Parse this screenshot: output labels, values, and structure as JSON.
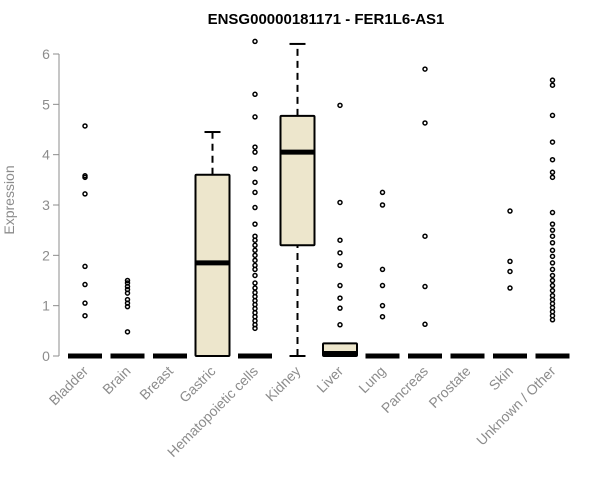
{
  "chart_data": {
    "type": "boxplot",
    "title": "ENSG00000181171 - FER1L6-AS1",
    "xlabel": "",
    "ylabel": "Expression",
    "ylim": [
      0,
      6.2
    ],
    "yticks": [
      0,
      1,
      2,
      3,
      4,
      5,
      6
    ],
    "grid": false,
    "box_fill": "#ede6cc",
    "stroke": "#000000",
    "axis_color": "#8c8c8c",
    "categories": [
      "Bladder",
      "Brain",
      "Breast",
      "Gastric",
      "Hematopoietic cells",
      "Kidney",
      "Liver",
      "Lung",
      "Pancreas",
      "Prostate",
      "Skin",
      "Unknown / Other"
    ],
    "boxes": [
      {
        "min": 0,
        "q1": 0,
        "median": 0,
        "q3": 0,
        "max": 0,
        "outliers": [
          0.8,
          1.05,
          1.42,
          1.78,
          3.22,
          3.55,
          3.58,
          4.57
        ]
      },
      {
        "min": 0,
        "q1": 0,
        "median": 0,
        "q3": 0,
        "max": 0,
        "outliers": [
          0.48,
          0.98,
          1.05,
          1.12,
          1.25,
          1.32,
          1.38,
          1.45,
          1.5
        ]
      },
      {
        "min": 0,
        "q1": 0,
        "median": 0,
        "q3": 0,
        "max": 0,
        "outliers": []
      },
      {
        "min": 0,
        "q1": 0,
        "median": 1.85,
        "q3": 3.6,
        "max": 4.45,
        "outliers": []
      },
      {
        "min": 0,
        "q1": 0,
        "median": 0,
        "q3": 0,
        "max": 0,
        "outliers": [
          0.55,
          0.62,
          0.7,
          0.78,
          0.86,
          0.94,
          1.02,
          1.1,
          1.18,
          1.26,
          1.35,
          1.45,
          1.6,
          1.72,
          1.8,
          1.9,
          2.0,
          2.1,
          2.2,
          2.3,
          2.38,
          2.62,
          2.95,
          3.25,
          3.45,
          3.72,
          4.05,
          4.15,
          4.75,
          5.2,
          6.25
        ]
      },
      {
        "min": 0,
        "q1": 2.2,
        "median": 4.05,
        "q3": 4.77,
        "max": 6.2,
        "outliers": []
      },
      {
        "min": 0,
        "q1": 0,
        "median": 0.05,
        "q3": 0.25,
        "max": 0.25,
        "outliers": [
          0.62,
          0.95,
          1.15,
          1.4,
          1.8,
          2.05,
          2.3,
          3.05,
          4.98
        ]
      },
      {
        "min": 0,
        "q1": 0,
        "median": 0,
        "q3": 0,
        "max": 0,
        "outliers": [
          0.78,
          1.0,
          1.4,
          1.72,
          3.0,
          3.25
        ]
      },
      {
        "min": 0,
        "q1": 0,
        "median": 0,
        "q3": 0,
        "max": 0,
        "outliers": [
          0.63,
          1.38,
          2.38,
          4.63,
          5.7
        ]
      },
      {
        "min": 0,
        "q1": 0,
        "median": 0,
        "q3": 0,
        "max": 0,
        "outliers": []
      },
      {
        "min": 0,
        "q1": 0,
        "median": 0,
        "q3": 0,
        "max": 0,
        "outliers": [
          1.35,
          1.68,
          1.88,
          2.88
        ]
      },
      {
        "min": 0,
        "q1": 0,
        "median": 0,
        "q3": 0,
        "max": 0,
        "outliers": [
          0.72,
          0.8,
          0.88,
          0.96,
          1.04,
          1.12,
          1.2,
          1.3,
          1.4,
          1.5,
          1.6,
          1.72,
          1.85,
          1.98,
          2.1,
          2.25,
          2.38,
          2.5,
          2.62,
          2.85,
          3.55,
          3.65,
          3.9,
          4.25,
          4.78,
          5.38,
          5.48
        ]
      }
    ]
  }
}
